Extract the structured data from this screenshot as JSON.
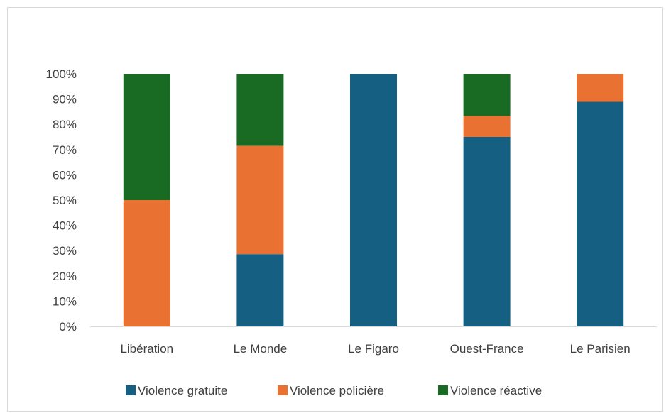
{
  "chart_data": {
    "type": "bar",
    "stacked": true,
    "percent_stacked": true,
    "title": "",
    "xlabel": "",
    "ylabel": "",
    "ylim": [
      0,
      100
    ],
    "y_ticks": [
      "0%",
      "10%",
      "20%",
      "30%",
      "40%",
      "50%",
      "60%",
      "70%",
      "80%",
      "90%",
      "100%"
    ],
    "categories": [
      "Libération",
      "Le Monde",
      "Le Figaro",
      "Ouest-France",
      "Le Parisien"
    ],
    "series": [
      {
        "name": "Violence gratuite",
        "color": "#156082",
        "values": [
          0,
          28.6,
          100,
          75,
          88.9
        ]
      },
      {
        "name": "Violence policière",
        "color": "#e97132",
        "values": [
          50,
          42.9,
          0,
          8.3,
          11.1
        ]
      },
      {
        "name": "Violence réactive",
        "color": "#196b24",
        "values": [
          50,
          28.5,
          0,
          16.7,
          0
        ]
      }
    ],
    "grid": false,
    "legend_position": "bottom"
  },
  "colors": {
    "axis": "#d9d9d9",
    "text": "#404040",
    "border": "#d9d9d9"
  }
}
